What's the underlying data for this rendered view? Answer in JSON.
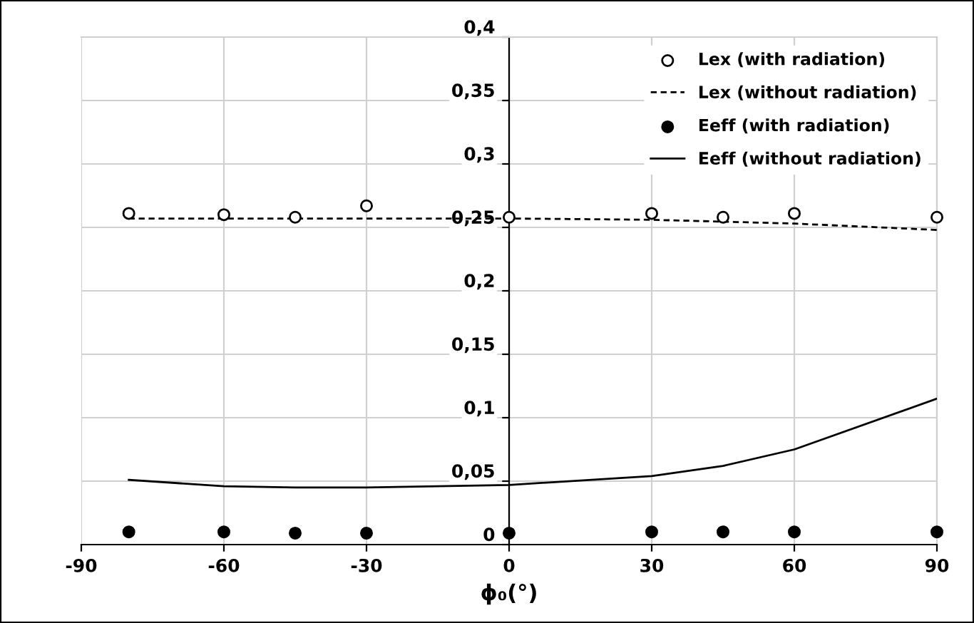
{
  "chart_data": {
    "type": "scatter",
    "xlabel": "ϕ₀(°)",
    "xlim": [
      -90,
      90
    ],
    "xticks": [
      -90,
      -60,
      -30,
      0,
      30,
      60,
      90
    ],
    "ylim": [
      0,
      0.4
    ],
    "yticks": [
      {
        "value": 0,
        "label": "0"
      },
      {
        "value": 0.05,
        "label": "0,05"
      },
      {
        "value": 0.1,
        "label": "0,1"
      },
      {
        "value": 0.15,
        "label": "0,15"
      },
      {
        "value": 0.2,
        "label": "0,2"
      },
      {
        "value": 0.25,
        "label": "0,25"
      },
      {
        "value": 0.3,
        "label": "0,3"
      },
      {
        "value": 0.35,
        "label": "0,35"
      },
      {
        "value": 0.4,
        "label": "0,4"
      }
    ],
    "grid": true,
    "legend": "top right",
    "series": [
      {
        "name": "Lex (with radiation)",
        "marker": "circle",
        "color": "#ffffff",
        "x": [
          -80,
          -60,
          -45,
          -30,
          0,
          30,
          45,
          60,
          90
        ],
        "values": [
          0.261,
          0.26,
          0.258,
          0.267,
          0.258,
          0.261,
          0.258,
          0.261,
          0.258
        ]
      },
      {
        "name": "Lex (without radiation)",
        "type": "line",
        "line_style": "dashed",
        "color": "#000000",
        "x": [
          -80,
          0,
          30,
          60,
          90
        ],
        "values": [
          0.257,
          0.257,
          0.256,
          0.253,
          0.248
        ]
      },
      {
        "name": "Eeff (with radiation)",
        "marker": "circle",
        "color": "#000000",
        "x": [
          -80,
          -60,
          -45,
          -30,
          0,
          30,
          45,
          60,
          90
        ],
        "values": [
          0.01,
          0.01,
          0.009,
          0.009,
          0.009,
          0.01,
          0.01,
          0.01,
          0.01
        ]
      },
      {
        "name": "Eeff (without radiation)",
        "type": "line",
        "line_style": "solid",
        "color": "#000000",
        "x": [
          -80,
          -60,
          -45,
          -30,
          0,
          30,
          45,
          60,
          90
        ],
        "values": [
          0.051,
          0.046,
          0.045,
          0.045,
          0.047,
          0.054,
          0.062,
          0.075,
          0.115
        ]
      }
    ]
  }
}
